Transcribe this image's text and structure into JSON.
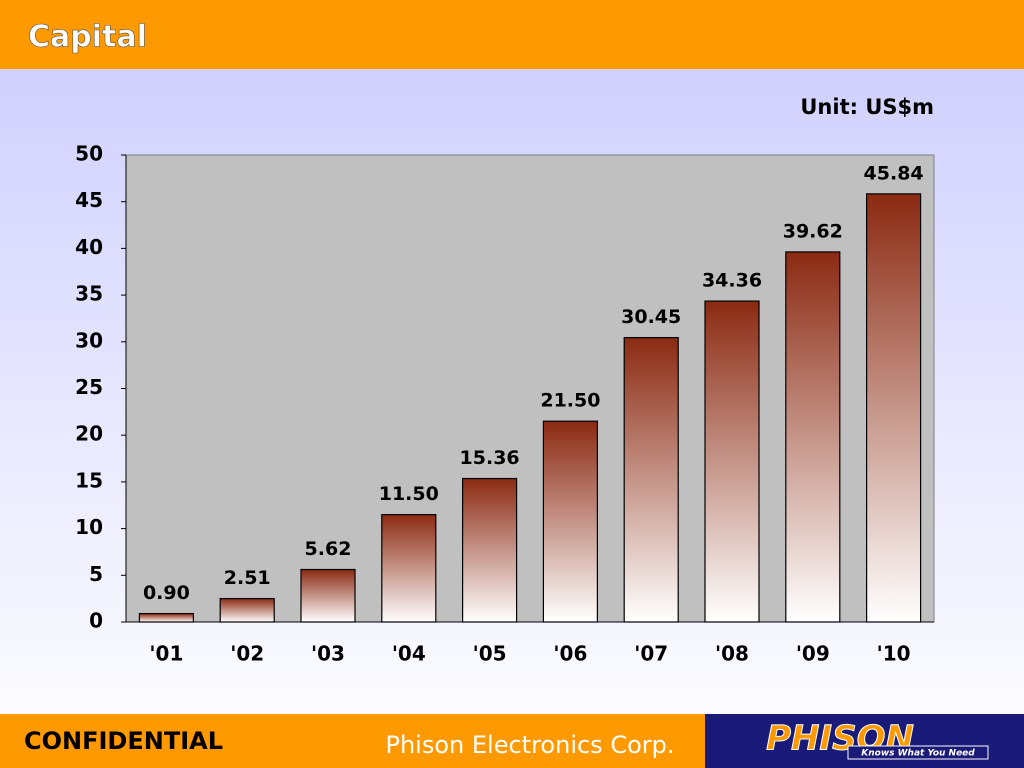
{
  "slide": {
    "title": "Capital",
    "confidential": "CONFIDENTIAL",
    "company": "Phison Electronics Corp.",
    "logo": "PHISON",
    "slogan": "Knows What You Need"
  },
  "chart_data": {
    "type": "bar",
    "subtitle": "Unit: US$m",
    "categories": [
      "'01",
      "'02",
      "'03",
      "'04",
      "'05",
      "'06",
      "'07",
      "'08",
      "'09",
      "'10"
    ],
    "values": [
      0.9,
      2.51,
      5.62,
      11.5,
      15.36,
      21.5,
      30.45,
      34.36,
      39.62,
      45.84
    ],
    "value_labels": [
      "0.90",
      "2.51",
      "5.62",
      "11.50",
      "15.36",
      "21.50",
      "30.45",
      "34.36",
      "39.62",
      "45.84"
    ],
    "color": "#8b2a12",
    "ylim": [
      0,
      50
    ],
    "yticks": [
      0,
      5,
      10,
      15,
      20,
      25,
      30,
      35,
      40,
      45,
      50
    ],
    "grid": false
  }
}
